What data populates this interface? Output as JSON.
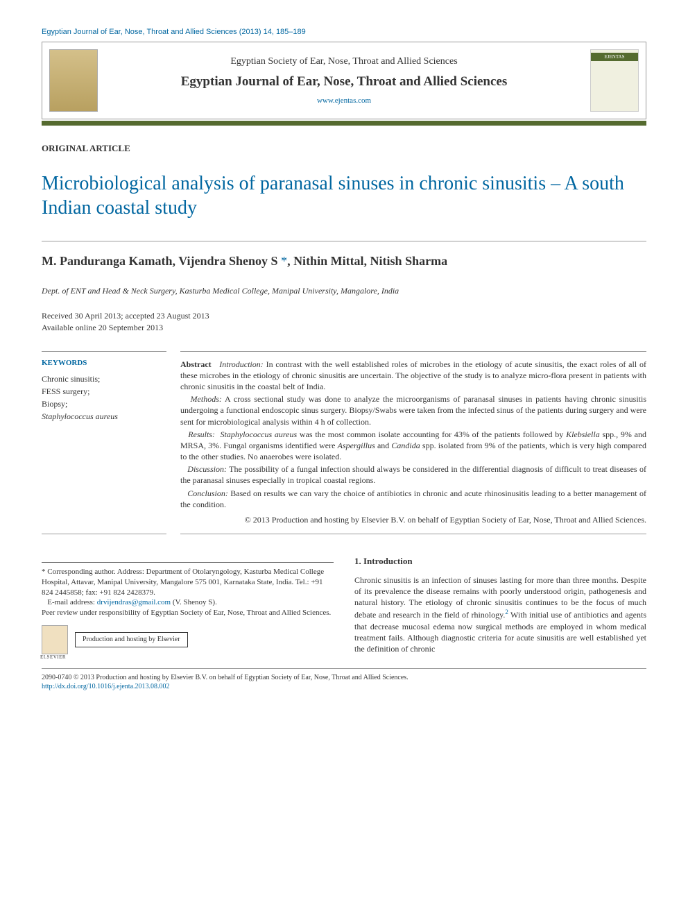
{
  "running_head": "Egyptian Journal of Ear, Nose, Throat and Allied Sciences (2013) 14, 185–189",
  "header": {
    "society": "Egyptian Society of Ear, Nose, Throat and Allied Sciences",
    "journal": "Egyptian Journal of Ear, Nose, Throat and Allied Sciences",
    "url": "www.ejentas.com"
  },
  "article_type": "ORIGINAL ARTICLE",
  "title": "Microbiological analysis of paranasal sinuses in chronic sinusitis – A south Indian coastal study",
  "authors": "M. Panduranga Kamath, Vijendra Shenoy S",
  "authors_rest": ", Nithin Mittal, Nitish Sharma",
  "affiliation": "Dept. of ENT and Head & Neck Surgery, Kasturba Medical College, Manipal University, Mangalore, India",
  "dates": {
    "received_accepted": "Received 30 April 2013; accepted 23 August 2013",
    "online": "Available online 20 September 2013"
  },
  "keywords": {
    "label": "KEYWORDS",
    "k1": "Chronic sinusitis;",
    "k2": "FESS surgery;",
    "k3": "Biopsy;",
    "k4": "Staphylococcus aureus"
  },
  "abstract": {
    "lead": "Abstract",
    "intro_hd": "Introduction:",
    "intro": " In contrast with the well established roles of microbes in the etiology of acute sinusitis, the exact roles of all of these microbes in the etiology of chronic sinusitis are uncertain. The objective of the study is to analyze micro-flora present in patients with chronic sinusitis in the coastal belt of India.",
    "methods_hd": "Methods:",
    "methods": " A cross sectional study was done to analyze the microorganisms of paranasal sinuses in patients having chronic sinusitis undergoing a functional endoscopic sinus surgery. Biopsy/Swabs were taken from the infected sinus of the patients during surgery and were sent for microbiological analysis within 4 h of collection.",
    "results_hd": "Results:",
    "results_a": "Staphylococcus aureus",
    "results_b": " was the most common isolate accounting for 43% of the patients followed by ",
    "results_c": "Klebsiella",
    "results_d": " spp., 9% and MRSA, 3%. Fungal organisms identified were ",
    "results_e": "Aspergillus",
    "results_f": " and ",
    "results_g": "Candida",
    "results_h": " spp. isolated from 9% of the patients, which is very high compared to the other studies. No anaerobes were isolated.",
    "discussion_hd": "Discussion:",
    "discussion": " The possibility of a fungal infection should always be considered in the differential diagnosis of difficult to treat diseases of the paranasal sinuses especially in tropical coastal regions.",
    "conclusion_hd": "Conclusion:",
    "conclusion": " Based on results we can vary the choice of antibiotics in chronic and acute rhinosinusitis leading to a better management of the condition.",
    "copyright": "© 2013 Production and hosting by Elsevier B.V. on behalf of Egyptian Society of Ear, Nose, Throat and Allied Sciences."
  },
  "corr": {
    "star": "*",
    "text1": " Corresponding author. Address: Department of Otolaryngology, Kasturba Medical College Hospital, Attavar, Manipal University, Mangalore 575 001, Karnataka State, India. Tel.: +91 824 2445858; fax: +91 824 2428379.",
    "email_label": "E-mail address: ",
    "email": "drvijendras@gmail.com",
    "email_who": " (V. Shenoy S).",
    "peer": "Peer review under responsibility of Egyptian Society of Ear, Nose, Throat and Allied Sciences.",
    "hosting": "Production and hosting by Elsevier"
  },
  "body": {
    "intro_heading": "1. Introduction",
    "intro_text_a": "Chronic sinusitis is an infection of sinuses lasting for more than three months. Despite of its prevalence the disease remains with poorly understood origin, pathogenesis and natural history. The etiology of chronic sinusitis continues to be the focus of much debate and research in the field of rhinology.",
    "intro_ref": "2",
    "intro_text_b": " With initial use of antibiotics and agents that decrease mucosal edema now surgical methods are employed in whom medical treatment fails. Although diagnostic criteria for acute sinusitis are well established yet the definition of chronic"
  },
  "footer": {
    "line1": "2090-0740 © 2013 Production and hosting by Elsevier B.V. on behalf of Egyptian Society of Ear, Nose, Throat and Allied Sciences.",
    "doi": "http://dx.doi.org/10.1016/j.ejenta.2013.08.002"
  }
}
